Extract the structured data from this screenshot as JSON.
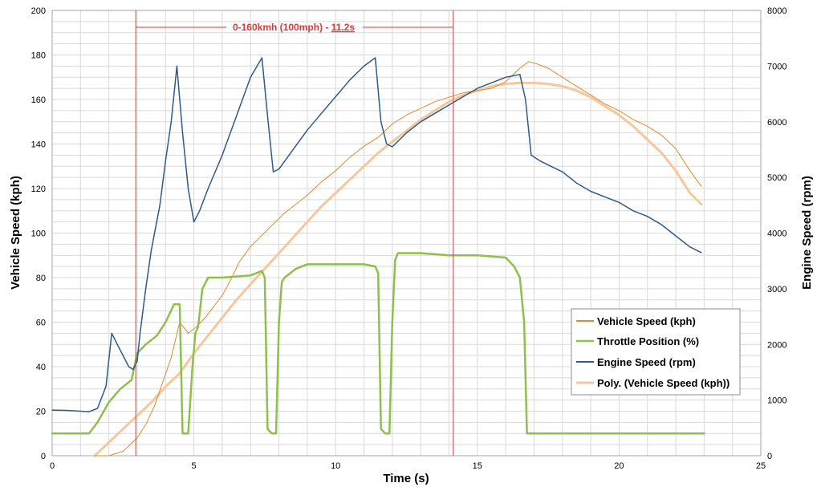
{
  "chart_data": {
    "type": "line",
    "xlabel": "Time (s)",
    "ylabel": "Vehicle Speed (kph)",
    "y2label": "Engine Speed (rpm)",
    "xlim": [
      0,
      25
    ],
    "ylim": [
      0,
      200
    ],
    "y2lim": [
      0,
      8000
    ],
    "x_ticks": [
      "0",
      "5",
      "10",
      "15",
      "20",
      "25"
    ],
    "y_ticks": [
      "0",
      "20",
      "40",
      "60",
      "80",
      "100",
      "120",
      "140",
      "160",
      "180",
      "200"
    ],
    "y2_ticks": [
      "0",
      "1000",
      "2000",
      "3000",
      "4000",
      "5000",
      "6000",
      "7000",
      "8000"
    ],
    "grid": true,
    "legend_position": "bottom-right",
    "annotation": {
      "text_prefix": "0-160kmh (100mph) - ",
      "text_value": "11.2s",
      "x_start": 2.95,
      "x_end": 14.15,
      "color": "#d93a3a"
    },
    "series": [
      {
        "name": "Vehicle Speed (kph)",
        "axis": "left",
        "color": "#e08b2e",
        "width": 1,
        "x": [
          1.5,
          2.0,
          2.5,
          3.0,
          3.3,
          3.6,
          3.9,
          4.2,
          4.5,
          4.8,
          5.1,
          5.4,
          5.7,
          6.0,
          6.3,
          6.6,
          7.0,
          7.4,
          7.8,
          8.2,
          8.6,
          9.0,
          9.5,
          10.0,
          10.5,
          11.0,
          11.5,
          12.0,
          12.5,
          13.0,
          13.5,
          14.0,
          14.5,
          15.0,
          15.5,
          16.0,
          16.5,
          16.8,
          17.1,
          17.5,
          18.0,
          18.5,
          19.0,
          19.5,
          20.0,
          20.5,
          21.0,
          21.5,
          22.0,
          22.5,
          22.9
        ],
        "values": [
          0,
          0,
          2,
          8,
          14,
          22,
          33,
          44,
          60,
          55,
          58,
          62,
          67,
          72,
          79,
          87,
          94,
          99,
          104,
          109,
          113,
          117,
          123,
          128,
          134,
          139,
          143,
          149,
          153,
          156,
          159,
          161,
          163,
          164,
          165,
          168,
          174,
          177,
          176,
          174,
          170,
          166,
          162,
          158,
          155,
          151,
          148,
          144,
          138,
          128,
          121
        ]
      },
      {
        "name": "Throttle Position (%)",
        "axis": "left",
        "color": "#8fbf4c",
        "width": 2.5,
        "x": [
          0.0,
          1.3,
          1.6,
          2.0,
          2.4,
          2.8,
          3.0,
          3.3,
          3.7,
          4.0,
          4.3,
          4.5,
          4.6,
          4.8,
          4.95,
          5.05,
          5.15,
          5.3,
          5.5,
          6.0,
          7.0,
          7.4,
          7.5,
          7.6,
          7.75,
          7.9,
          8.0,
          8.1,
          8.2,
          8.6,
          9.0,
          10.0,
          11.0,
          11.4,
          11.5,
          11.6,
          11.75,
          11.9,
          12.0,
          12.1,
          12.2,
          13.0,
          14.0,
          15.0,
          16.0,
          16.3,
          16.5,
          16.65,
          16.75,
          17.0,
          23.0
        ],
        "values": [
          10,
          10,
          15,
          24,
          30,
          34,
          46,
          50,
          54,
          60,
          68,
          68,
          10,
          10,
          40,
          55,
          58,
          75,
          80,
          80,
          81,
          83,
          80,
          12,
          10,
          10,
          60,
          78,
          80,
          84,
          86,
          86,
          86,
          85,
          82,
          12,
          10,
          10,
          60,
          88,
          91,
          91,
          90,
          90,
          89,
          85,
          80,
          60,
          10,
          10,
          10
        ]
      },
      {
        "name": "Engine Speed (rpm)",
        "axis": "right",
        "color": "#2f5a8c",
        "width": 1.5,
        "x": [
          0.0,
          0.5,
          1.0,
          1.3,
          1.6,
          1.9,
          2.1,
          2.3,
          2.5,
          2.7,
          2.85,
          3.0,
          3.1,
          3.3,
          3.5,
          3.8,
          4.0,
          4.2,
          4.4,
          4.6,
          4.8,
          5.0,
          5.2,
          5.5,
          6.0,
          6.5,
          7.0,
          7.4,
          7.6,
          7.8,
          8.0,
          8.5,
          9.0,
          9.5,
          10.0,
          10.5,
          11.0,
          11.4,
          11.6,
          11.8,
          12.0,
          12.5,
          13.0,
          13.5,
          14.0,
          14.5,
          15.0,
          15.5,
          16.0,
          16.5,
          16.7,
          16.9,
          17.2,
          17.6,
          18.0,
          18.5,
          19.0,
          19.5,
          20.0,
          20.5,
          21.0,
          21.5,
          22.0,
          22.5,
          22.9
        ],
        "values": [
          820,
          815,
          800,
          790,
          850,
          1250,
          2200,
          2000,
          1800,
          1600,
          1550,
          1700,
          2200,
          3000,
          3700,
          4500,
          5300,
          6000,
          7000,
          5800,
          4800,
          4200,
          4400,
          4800,
          5400,
          6100,
          6800,
          7150,
          6100,
          5100,
          5150,
          5500,
          5850,
          6150,
          6450,
          6750,
          7000,
          7150,
          6000,
          5600,
          5550,
          5800,
          6000,
          6150,
          6300,
          6450,
          6600,
          6700,
          6800,
          6850,
          6400,
          5400,
          5300,
          5200,
          5100,
          4900,
          4750,
          4650,
          4550,
          4400,
          4300,
          4150,
          3950,
          3750,
          3650
        ]
      },
      {
        "name": "Poly. (Vehicle Speed (kph))",
        "axis": "left",
        "color": "#f7c79c",
        "width": 3,
        "x": [
          1.5,
          2.0,
          2.5,
          3.0,
          3.5,
          4.0,
          4.5,
          5.0,
          5.5,
          6.0,
          6.5,
          7.0,
          7.5,
          8.0,
          8.5,
          9.0,
          9.5,
          10.0,
          10.5,
          11.0,
          11.5,
          12.0,
          12.5,
          13.0,
          13.5,
          14.0,
          14.5,
          15.0,
          15.5,
          16.0,
          16.5,
          17.0,
          17.5,
          18.0,
          18.5,
          19.0,
          19.5,
          20.0,
          20.5,
          21.0,
          21.5,
          22.0,
          22.5,
          22.9
        ],
        "values": [
          0,
          6,
          12,
          18,
          24,
          31,
          37,
          46,
          54,
          62,
          70,
          77,
          84,
          91,
          98,
          105,
          112,
          118,
          124,
          130,
          136,
          141,
          146,
          151,
          155,
          159,
          162,
          164,
          166,
          167,
          167.5,
          167.5,
          167,
          166,
          164,
          161,
          157,
          153,
          148,
          142,
          136,
          128,
          118,
          113
        ]
      }
    ]
  }
}
